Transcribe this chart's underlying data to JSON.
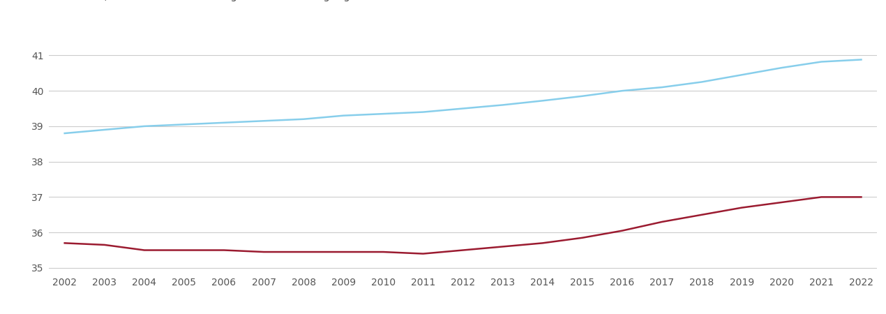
{
  "years": [
    2002,
    2003,
    2004,
    2005,
    2006,
    2007,
    2008,
    2009,
    2010,
    2011,
    2012,
    2013,
    2014,
    2015,
    2016,
    2017,
    2018,
    2019,
    2020,
    2021,
    2022
  ],
  "nw_london": [
    35.7,
    35.65,
    35.5,
    35.5,
    35.5,
    35.45,
    35.45,
    35.45,
    35.45,
    35.4,
    35.5,
    35.6,
    35.7,
    35.85,
    36.05,
    36.3,
    36.5,
    36.7,
    36.85,
    37.0,
    37.0
  ],
  "england_wales": [
    38.8,
    38.9,
    39.0,
    39.05,
    39.1,
    39.15,
    39.2,
    39.3,
    39.35,
    39.4,
    39.5,
    39.6,
    39.72,
    39.85,
    40.0,
    40.1,
    40.25,
    40.45,
    40.65,
    40.82,
    40.88
  ],
  "nw_color": "#9B1B30",
  "ew_color": "#87CEEB",
  "ylim_min": 34.85,
  "ylim_max": 41.5,
  "yticks": [
    35,
    36,
    37,
    38,
    39,
    40,
    41
  ],
  "background_color": "#ffffff",
  "grid_color": "#cccccc",
  "tick_label_color": "#555555",
  "line_width": 1.8,
  "tick_fontsize": 10,
  "legend_fontsize": 11
}
